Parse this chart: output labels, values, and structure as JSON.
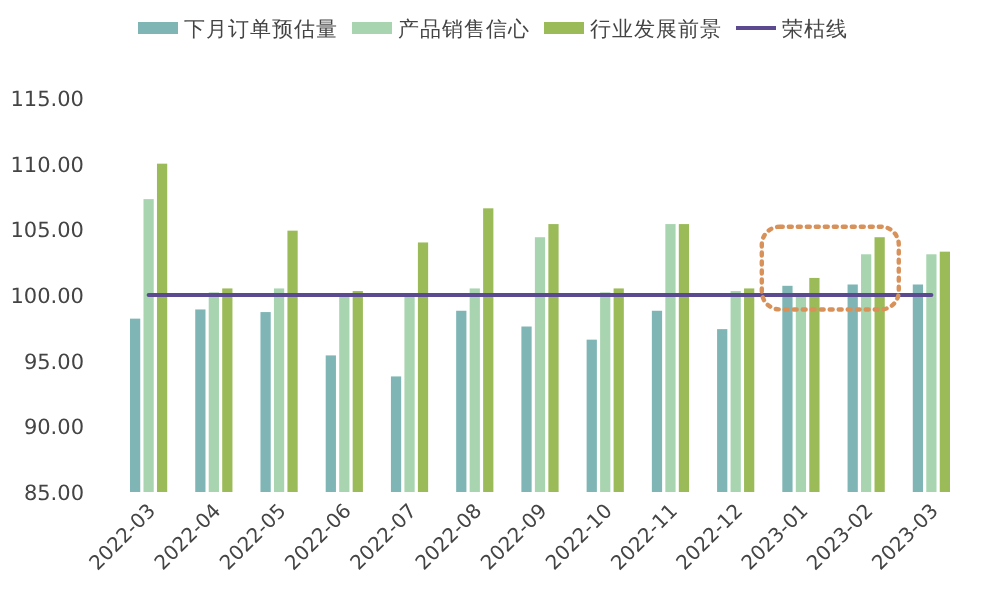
{
  "chart_data": {
    "type": "bar",
    "categories": [
      "2022-03",
      "2022-04",
      "2022-05",
      "2022-06",
      "2022-07",
      "2022-08",
      "2022-09",
      "2022-10",
      "2022-11",
      "2022-12",
      "2023-01",
      "2023-02",
      "2023-03"
    ],
    "series": [
      {
        "name": "下月订单预估量",
        "color": "#7fb5b5",
        "values": [
          98.2,
          98.9,
          98.7,
          95.4,
          93.8,
          98.8,
          97.6,
          96.6,
          98.8,
          97.4,
          100.7,
          100.8,
          100.8
        ]
      },
      {
        "name": "产品销售信心",
        "color": "#a8d5b0",
        "values": [
          107.3,
          100.2,
          100.5,
          100.0,
          100.0,
          100.5,
          104.4,
          100.2,
          105.4,
          100.3,
          100.0,
          103.1,
          103.1
        ]
      },
      {
        "name": "行业发展前景",
        "color": "#9bbb59",
        "values": [
          110.0,
          100.5,
          104.9,
          100.3,
          104.0,
          106.6,
          105.4,
          100.5,
          105.4,
          100.5,
          101.3,
          104.4,
          103.3
        ]
      },
      {
        "name": "荣枯线",
        "type": "line",
        "color": "#5b4a8f",
        "values": [
          100,
          100,
          100,
          100,
          100,
          100,
          100,
          100,
          100,
          100,
          100,
          100,
          100
        ]
      }
    ],
    "ylim": [
      85,
      115
    ],
    "yticks": [
      {
        "value": 85,
        "label": "85.00"
      },
      {
        "value": 90,
        "label": "90.00"
      },
      {
        "value": 95,
        "label": "95.00"
      },
      {
        "value": 100,
        "label": "100.00"
      },
      {
        "value": 105,
        "label": "105.00"
      },
      {
        "value": 110,
        "label": "110.00"
      },
      {
        "value": 115,
        "label": "115.00"
      }
    ],
    "legend": "top",
    "grid": false
  }
}
